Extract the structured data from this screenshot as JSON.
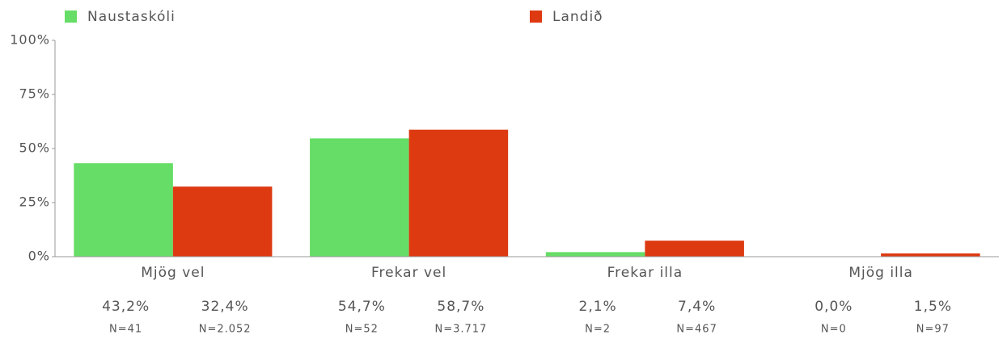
{
  "chart_data": {
    "type": "bar",
    "categories": [
      "Mjög vel",
      "Frekar vel",
      "Frekar illa",
      "Mjög illa"
    ],
    "series": [
      {
        "name": "Naustaskóli",
        "color": "#66dd66",
        "values": [
          43.2,
          54.7,
          2.1,
          0.0
        ],
        "value_labels": [
          "43,2%",
          "54,7%",
          "2,1%",
          "0,0%"
        ],
        "n_labels": [
          "N=41",
          "N=52",
          "N=2",
          "N=0"
        ]
      },
      {
        "name": "Landið",
        "color": "#dd3a11",
        "values": [
          32.4,
          58.7,
          7.4,
          1.5
        ],
        "value_labels": [
          "32,4%",
          "58,7%",
          "7,4%",
          "1,5%"
        ],
        "n_labels": [
          "N=2.052",
          "N=3.717",
          "N=467",
          "N=97"
        ]
      }
    ],
    "ylim": [
      0,
      100
    ],
    "yticks": [
      {
        "value": 0,
        "label": "0%"
      },
      {
        "value": 25,
        "label": "25%"
      },
      {
        "value": 50,
        "label": "50%"
      },
      {
        "value": 75,
        "label": "75%"
      },
      {
        "value": 100,
        "label": "100%"
      }
    ],
    "legend": "top"
  }
}
